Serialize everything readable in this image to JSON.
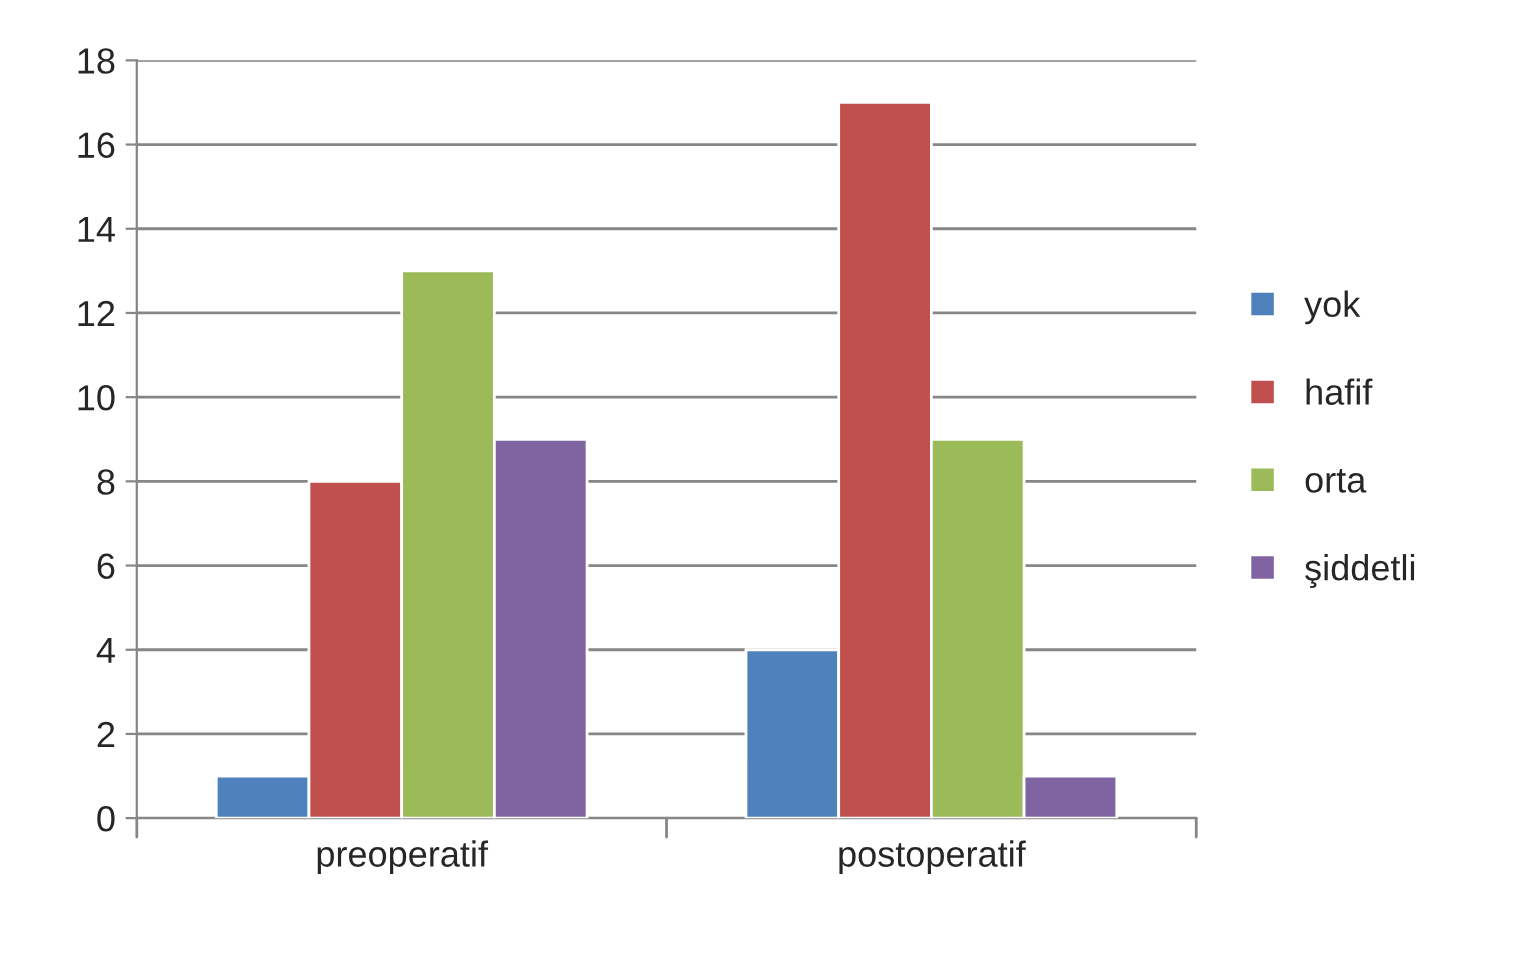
{
  "chart_data": {
    "type": "bar",
    "categories": [
      "preoperatif",
      "postoperatif"
    ],
    "series": [
      {
        "name": "yok",
        "color": "#4f81bd",
        "values": [
          1,
          4
        ]
      },
      {
        "name": "hafif",
        "color": "#c0504d",
        "values": [
          8,
          17
        ]
      },
      {
        "name": "orta",
        "color": "#9bbb59",
        "values": [
          13,
          9
        ]
      },
      {
        "name": "şiddetli",
        "color": "#8064a2",
        "values": [
          9,
          1
        ]
      }
    ],
    "ylim": [
      0,
      18
    ],
    "yticks": [
      0,
      2,
      4,
      6,
      8,
      10,
      12,
      14,
      16,
      18
    ],
    "grid": "y",
    "legend": "right"
  }
}
